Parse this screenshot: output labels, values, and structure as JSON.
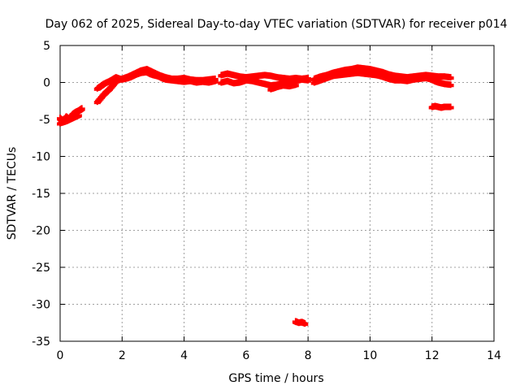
{
  "chart_data": {
    "type": "scatter",
    "title": "Day 062 of 2025, Sidereal Day-to-day VTEC variation (SDTVAR) for receiver p014",
    "xlabel": "GPS time / hours",
    "ylabel": "SDTVAR / TECUs",
    "xlim": [
      0,
      14
    ],
    "ylim": [
      -35,
      5
    ],
    "xticks": [
      0,
      2,
      4,
      6,
      8,
      10,
      12,
      14
    ],
    "yticks": [
      5,
      0,
      -5,
      -10,
      -15,
      -20,
      -25,
      -30,
      -35
    ],
    "grid": true,
    "marker_color": "#ff0000",
    "series": [
      {
        "x": [
          0.0,
          0.1,
          0.2,
          0.3,
          0.4,
          0.5,
          0.6,
          0.7
        ],
        "y": [
          -4.8,
          -5.2,
          -4.6,
          -5.0,
          -4.3,
          -4.0,
          -3.8,
          -3.5
        ]
      },
      {
        "x": [
          0.0,
          0.15,
          0.3,
          0.45,
          0.6
        ],
        "y": [
          -5.5,
          -5.3,
          -5.0,
          -4.7,
          -4.4
        ]
      },
      {
        "x": [
          1.2,
          1.4,
          1.6,
          1.8,
          2.0,
          2.2,
          2.4,
          2.6,
          2.8,
          3.0,
          3.2,
          3.4,
          3.6,
          3.8,
          4.0,
          4.2,
          4.4,
          4.6,
          4.8,
          5.0
        ],
        "y": [
          -2.6,
          -1.6,
          -0.8,
          0.2,
          0.5,
          0.8,
          1.2,
          1.6,
          1.8,
          1.4,
          1.0,
          0.7,
          0.5,
          0.5,
          0.6,
          0.4,
          0.3,
          0.3,
          0.4,
          0.5
        ]
      },
      {
        "x": [
          1.2,
          1.4,
          1.6,
          1.8,
          2.0,
          2.2,
          2.4,
          2.6,
          2.8,
          3.0,
          3.2,
          3.4,
          3.6,
          3.8,
          4.0,
          4.2,
          4.4,
          4.6,
          4.8,
          5.0
        ],
        "y": [
          -0.8,
          -0.2,
          0.2,
          0.7,
          0.4,
          0.6,
          1.0,
          1.3,
          1.4,
          1.0,
          0.8,
          0.4,
          0.3,
          0.2,
          0.1,
          0.2,
          0.0,
          0.1,
          0.0,
          0.2
        ]
      },
      {
        "x": [
          5.2,
          5.4,
          5.6,
          5.8,
          6.0,
          6.2,
          6.4,
          6.6,
          6.8,
          7.0,
          7.2,
          7.4,
          7.6,
          7.8,
          8.0
        ],
        "y": [
          1.0,
          1.2,
          1.0,
          0.8,
          0.7,
          0.8,
          0.9,
          1.0,
          0.9,
          0.7,
          0.6,
          0.5,
          0.6,
          0.5,
          0.6
        ]
      },
      {
        "x": [
          5.2,
          5.4,
          5.6,
          5.8,
          6.0,
          6.2,
          6.4,
          6.6,
          6.8,
          7.0,
          7.2,
          7.4,
          7.6,
          7.8,
          8.0
        ],
        "y": [
          0.0,
          0.2,
          -0.1,
          0.0,
          0.3,
          0.2,
          0.0,
          -0.2,
          -0.4,
          -0.3,
          -0.1,
          0.1,
          0.2,
          0.4,
          0.3
        ]
      },
      {
        "x": [
          6.8,
          7.0,
          7.2,
          7.4,
          7.6
        ],
        "y": [
          -0.9,
          -0.6,
          -0.4,
          -0.5,
          -0.3
        ]
      },
      {
        "x": [
          7.6,
          7.7,
          7.8,
          7.9
        ],
        "y": [
          -32.3,
          -32.5,
          -32.4,
          -32.6
        ]
      },
      {
        "x": [
          8.2,
          8.4,
          8.6,
          8.8,
          9.0,
          9.2,
          9.4,
          9.6,
          9.8,
          10.0,
          10.2,
          10.4,
          10.6,
          10.8,
          11.0,
          11.2,
          11.4,
          11.6,
          11.8,
          12.0,
          12.2,
          12.4,
          12.6
        ],
        "y": [
          0.5,
          0.8,
          1.0,
          1.3,
          1.5,
          1.7,
          1.8,
          2.0,
          1.9,
          1.8,
          1.6,
          1.4,
          1.1,
          0.9,
          0.8,
          0.7,
          0.8,
          0.9,
          1.0,
          0.9,
          0.8,
          0.8,
          0.7
        ]
      },
      {
        "x": [
          8.2,
          8.4,
          8.6,
          8.8,
          9.0,
          9.2,
          9.4,
          9.6,
          9.8,
          10.0,
          10.2,
          10.4,
          10.6,
          10.8,
          11.0,
          11.2,
          11.4,
          11.6,
          11.8,
          12.0,
          12.2,
          12.4,
          12.6
        ],
        "y": [
          0.0,
          0.3,
          0.6,
          0.9,
          1.0,
          1.1,
          1.2,
          1.3,
          1.2,
          1.1,
          1.0,
          0.8,
          0.5,
          0.3,
          0.3,
          0.2,
          0.4,
          0.5,
          0.6,
          0.4,
          0.0,
          -0.2,
          -0.3
        ]
      },
      {
        "x": [
          12.0,
          12.1,
          12.2,
          12.3,
          12.4,
          12.5,
          12.6
        ],
        "y": [
          -3.3,
          -3.2,
          -3.3,
          -3.4,
          -3.3,
          -3.3,
          -3.3
        ]
      }
    ]
  }
}
